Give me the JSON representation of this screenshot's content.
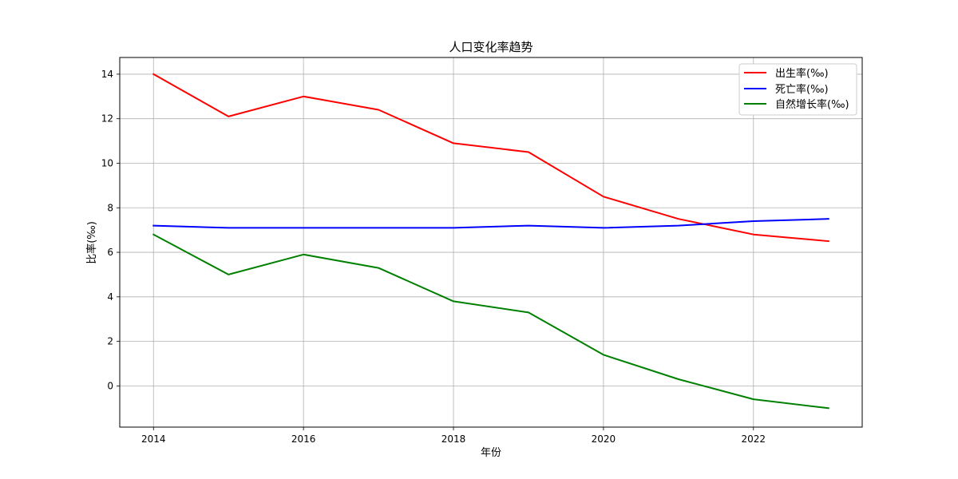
{
  "chart_data": {
    "type": "line",
    "title": "人口变化率趋势",
    "xlabel": "年份",
    "ylabel": "比率(‰)",
    "x": [
      2014,
      2015,
      2016,
      2017,
      2018,
      2019,
      2020,
      2021,
      2022,
      2023
    ],
    "xlim": [
      2013.55,
      2023.45
    ],
    "ylim": [
      -1.85,
      14.75
    ],
    "xticks": [
      2014,
      2016,
      2018,
      2020,
      2022
    ],
    "yticks": [
      0,
      2,
      4,
      6,
      8,
      10,
      12,
      14
    ],
    "grid": true,
    "legend_position": "top-right",
    "series": [
      {
        "name": "出生率(‰)",
        "color": "#ff0000",
        "values": [
          14.0,
          12.1,
          13.0,
          12.4,
          10.9,
          10.5,
          8.5,
          7.5,
          6.8,
          6.5
        ]
      },
      {
        "name": "死亡率(‰)",
        "color": "#0000ff",
        "values": [
          7.2,
          7.1,
          7.1,
          7.1,
          7.1,
          7.2,
          7.1,
          7.2,
          7.4,
          7.5
        ]
      },
      {
        "name": "自然增长率(‰)",
        "color": "#008000",
        "values": [
          6.8,
          5.0,
          5.9,
          5.3,
          3.8,
          3.3,
          1.4,
          0.3,
          -0.6,
          -1.0
        ]
      }
    ]
  }
}
